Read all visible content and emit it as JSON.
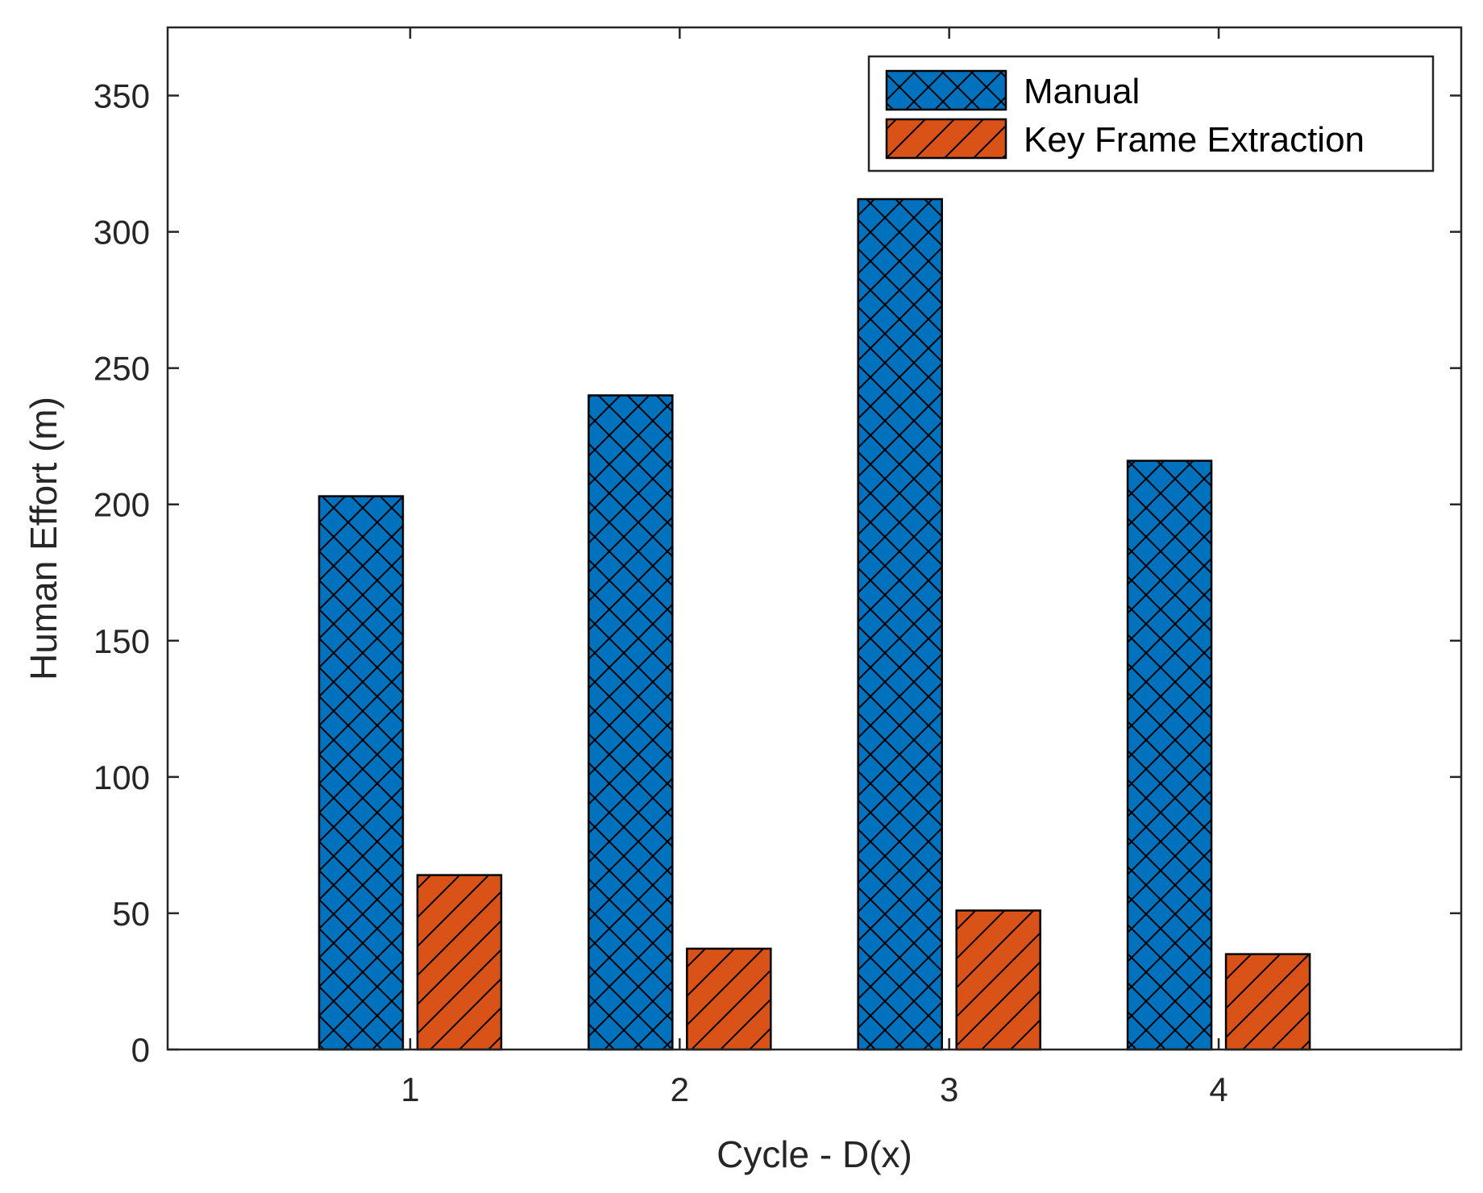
{
  "chart_data": {
    "type": "bar",
    "categories": [
      "1",
      "2",
      "3",
      "4"
    ],
    "series": [
      {
        "name": "Manual",
        "values": [
          203,
          240,
          312,
          216
        ],
        "color": "#0072BD",
        "hatch": "crosshatch"
      },
      {
        "name": "Key Frame Extraction",
        "values": [
          64,
          37,
          51,
          35
        ],
        "color": "#D95319",
        "hatch": "diagonal"
      }
    ],
    "xlabel": "Cycle - D(x)",
    "ylabel": "Human Effort (m)",
    "ylim": [
      0,
      375
    ],
    "yticks": [
      0,
      50,
      100,
      150,
      200,
      250,
      300,
      350
    ],
    "legend": "top-right",
    "grid": false
  }
}
